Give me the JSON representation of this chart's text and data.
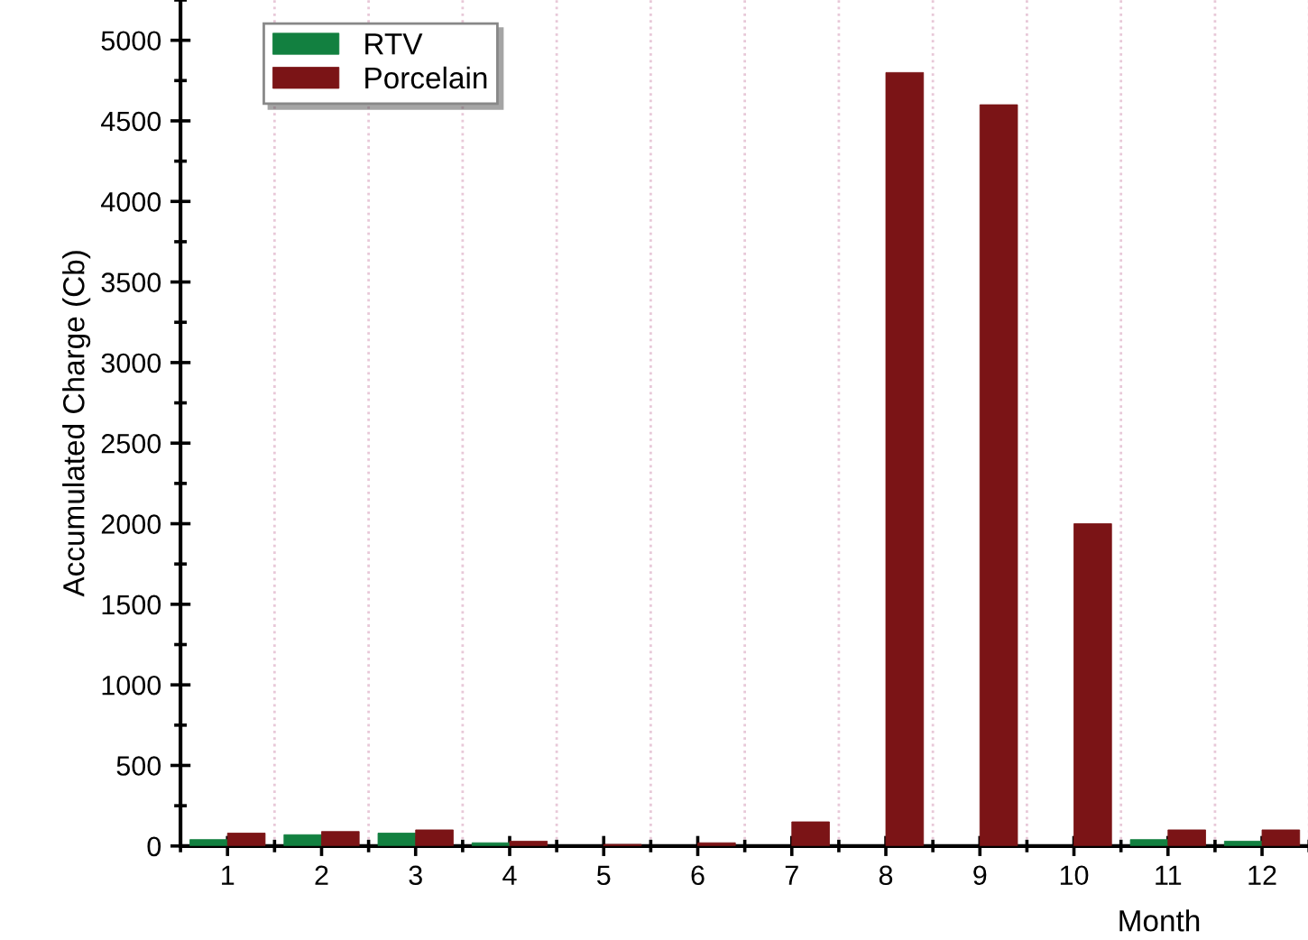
{
  "chart_data": {
    "type": "bar",
    "xlabel": "Month",
    "ylabel": "Accumulated Charge (Cb)",
    "categories": [
      "1",
      "2",
      "3",
      "4",
      "5",
      "6",
      "7",
      "8",
      "9",
      "10",
      "11",
      "12"
    ],
    "series": [
      {
        "name": "RTV",
        "color": "#128040",
        "values": [
          40,
          70,
          80,
          20,
          null,
          null,
          null,
          null,
          null,
          null,
          40,
          30
        ]
      },
      {
        "name": "Porcelain",
        "color": "#7b1416",
        "values": [
          80,
          90,
          100,
          30,
          10,
          20,
          150,
          4800,
          4600,
          2000,
          100,
          100
        ]
      }
    ],
    "ylim": [
      0,
      5250
    ],
    "yticks": [
      0,
      500,
      1000,
      1500,
      2000,
      2500,
      3000,
      3500,
      4000,
      4500,
      5000
    ],
    "grid": "x",
    "legend": "top left"
  }
}
